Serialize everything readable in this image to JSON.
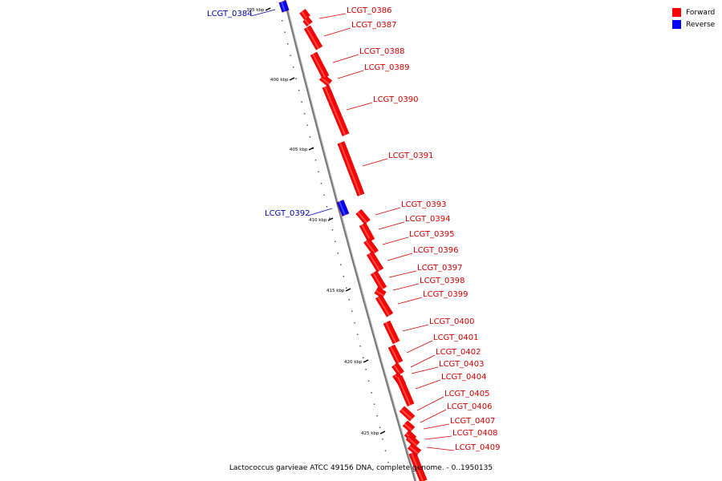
{
  "caption": "Lactococcus garvieae ATCC 49156 DNA, complete genome. - 0..1950135",
  "legend": [
    {
      "label": "Forward",
      "color": "#ff0000"
    },
    {
      "label": "Reverse",
      "color": "#0000ff"
    }
  ],
  "colors": {
    "forward": "#ff0000",
    "reverse": "#0000ff",
    "backbone": "#777777",
    "label_forward": "#cc0000",
    "label_reverse": "#0000aa"
  },
  "scale": [
    {
      "label": "395 kbp"
    },
    {
      "label": "400 kbp"
    },
    {
      "label": "405 kbp"
    },
    {
      "label": "410 kbp"
    },
    {
      "label": "415 kbp"
    },
    {
      "label": "420 kbp"
    },
    {
      "label": "425 kbp"
    }
  ],
  "genes": [
    {
      "name": "LCGT_0384",
      "strand": "reverse"
    },
    {
      "name": "LCGT_0386",
      "strand": "forward"
    },
    {
      "name": "LCGT_0387",
      "strand": "forward"
    },
    {
      "name": "LCGT_0388",
      "strand": "forward"
    },
    {
      "name": "LCGT_0389",
      "strand": "forward"
    },
    {
      "name": "LCGT_0390",
      "strand": "forward"
    },
    {
      "name": "LCGT_0391",
      "strand": "forward"
    },
    {
      "name": "LCGT_0392",
      "strand": "reverse"
    },
    {
      "name": "LCGT_0393",
      "strand": "forward"
    },
    {
      "name": "LCGT_0394",
      "strand": "forward"
    },
    {
      "name": "LCGT_0395",
      "strand": "forward"
    },
    {
      "name": "LCGT_0396",
      "strand": "forward"
    },
    {
      "name": "LCGT_0397",
      "strand": "forward"
    },
    {
      "name": "LCGT_0398",
      "strand": "forward"
    },
    {
      "name": "LCGT_0399",
      "strand": "forward"
    },
    {
      "name": "LCGT_0400",
      "strand": "forward"
    },
    {
      "name": "LCGT_0401",
      "strand": "forward"
    },
    {
      "name": "LCGT_0402",
      "strand": "forward"
    },
    {
      "name": "LCGT_0403",
      "strand": "forward"
    },
    {
      "name": "LCGT_0404",
      "strand": "forward"
    },
    {
      "name": "LCGT_0405",
      "strand": "forward"
    },
    {
      "name": "LCGT_0406",
      "strand": "forward"
    },
    {
      "name": "LCGT_0407",
      "strand": "forward"
    },
    {
      "name": "LCGT_0408",
      "strand": "forward"
    },
    {
      "name": "LCGT_0409",
      "strand": "forward"
    }
  ]
}
